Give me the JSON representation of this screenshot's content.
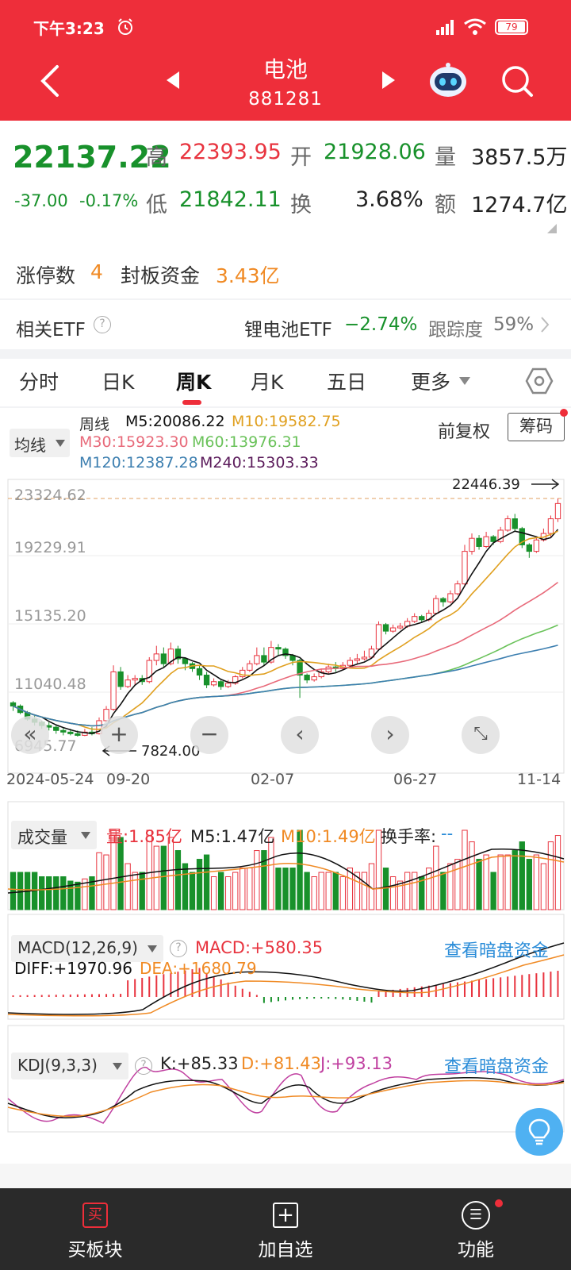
{
  "status": {
    "time": "下午3:23",
    "battery": "79"
  },
  "header": {
    "title": "电池",
    "code": "881281"
  },
  "quote": {
    "price": "22137.22",
    "change": "-37.00",
    "change_pct": "-0.17%",
    "high_label": "高",
    "high": "22393.95",
    "open_label": "开",
    "open": "21928.06",
    "vol_label": "量",
    "vol": "3857.5万",
    "low_label": "低",
    "low": "21842.11",
    "turn_label": "换",
    "turn": "3.68%",
    "amt_label": "额",
    "amt": "1274.7亿"
  },
  "limit": {
    "label": "涨停数",
    "count": "4",
    "fund_label": "封板资金",
    "fund": "3.43亿"
  },
  "etf": {
    "label": "相关ETF",
    "name": "锂电池ETF",
    "change": "−2.74%",
    "track_label": "跟踪度",
    "track": "59%"
  },
  "tabs": [
    "分时",
    "日K",
    "周K",
    "月K",
    "五日",
    "更多"
  ],
  "kline": {
    "indicator": "均线",
    "period": "周线",
    "m5": "M5:20086.22",
    "m10": "M10:19582.75",
    "m30": "M30:15923.30",
    "m60": "M60:13976.31",
    "m120": "M120:12387.28",
    "m240": "M240:15303.33",
    "restore": "前复权",
    "chip": "筹码",
    "y_ticks": [
      "23324.62",
      "19229.91",
      "15135.20",
      "11040.48",
      "6945.77"
    ],
    "high_mark": "22446.39",
    "low_mark": "7824.00",
    "x_ticks": [
      "2024-05-24",
      "09-20",
      "02-07",
      "06-27",
      "11-14"
    ]
  },
  "volume": {
    "selector": "成交量",
    "vol": "量:1.85亿",
    "m5": "M5:1.47亿",
    "m10": "M10:1.49亿",
    "turn_label": "换手率:",
    "turn": "--"
  },
  "macd": {
    "selector": "MACD(12,26,9)",
    "macd": "MACD:+580.35",
    "link": "查看暗盘资金",
    "diff": "DIFF:+1970.96",
    "dea": "DEA:+1680.79"
  },
  "kdj": {
    "selector": "KDJ(9,3,3)",
    "k": "K:+85.33",
    "d": "D:+81.43",
    "j": "J:+93.13",
    "link": "查看暗盘资金"
  },
  "bottom_nav": [
    {
      "label": "买板块",
      "icon": "买"
    },
    {
      "label": "加自选",
      "icon": "+"
    },
    {
      "label": "功能",
      "icon": "☰"
    }
  ],
  "colors": {
    "header": "#ee2e3a",
    "up": "#e8343f",
    "down": "#18912b",
    "m5": "#111111",
    "m10": "#e0a020",
    "m30": "#e86a7a",
    "m60": "#6ac25a",
    "m120": "#3d7fb0",
    "m240": "#5a1a5a"
  },
  "chart_data": {
    "type": "candlestick",
    "y_range": [
      6945.77,
      23324.62
    ],
    "candles": [
      [
        9900,
        9700,
        10000,
        9400
      ],
      [
        9700,
        9300,
        9800,
        9200
      ],
      [
        9300,
        8900,
        9400,
        8800
      ],
      [
        8900,
        8700,
        9100,
        8500
      ],
      [
        8700,
        8500,
        8800,
        8300
      ],
      [
        8500,
        8400,
        8700,
        8200
      ],
      [
        8400,
        8200,
        8500,
        8000
      ],
      [
        8200,
        8100,
        8400,
        7900
      ],
      [
        8100,
        8000,
        8300,
        7900
      ],
      [
        8000,
        7900,
        8200,
        7824
      ],
      [
        7900,
        8100,
        8300,
        7850
      ],
      [
        8100,
        8000,
        8400,
        7900
      ],
      [
        8000,
        8800,
        9000,
        7950
      ],
      [
        8800,
        9500,
        9700,
        8700
      ],
      [
        9500,
        11800,
        12200,
        9400
      ],
      [
        11800,
        10900,
        12100,
        10700
      ],
      [
        10900,
        11300,
        11600,
        10800
      ],
      [
        11300,
        11400,
        11600,
        11000
      ],
      [
        11400,
        11200,
        11600,
        11000
      ],
      [
        11200,
        12500,
        12700,
        11100
      ],
      [
        12500,
        12900,
        13400,
        12200
      ],
      [
        12900,
        12300,
        13300,
        12100
      ],
      [
        12300,
        13200,
        13600,
        12200
      ],
      [
        13200,
        12600,
        13400,
        12300
      ],
      [
        12600,
        12300,
        12700,
        11900
      ],
      [
        12300,
        12000,
        12400,
        11800
      ],
      [
        12000,
        11600,
        12200,
        11300
      ],
      [
        11600,
        11000,
        11800,
        10800
      ],
      [
        11000,
        11200,
        11400,
        10900
      ],
      [
        11200,
        10900,
        11300,
        10700
      ],
      [
        10900,
        11100,
        11300,
        10800
      ],
      [
        11100,
        11500,
        11600,
        11000
      ],
      [
        11500,
        11900,
        12100,
        11400
      ],
      [
        11900,
        12300,
        12500,
        11800
      ],
      [
        12300,
        12800,
        13300,
        12200
      ],
      [
        12800,
        12400,
        13300,
        12200
      ],
      [
        12400,
        13300,
        13700,
        12300
      ],
      [
        13300,
        13200,
        13500,
        12800
      ],
      [
        13200,
        12800,
        13300,
        12600
      ],
      [
        12800,
        12500,
        12900,
        12200
      ],
      [
        12500,
        11600,
        12600,
        10200
      ],
      [
        11600,
        11300,
        11700,
        11100
      ],
      [
        11300,
        11500,
        11700,
        11200
      ],
      [
        11500,
        11800,
        12000,
        11400
      ],
      [
        11800,
        12100,
        12300,
        11700
      ],
      [
        12100,
        12000,
        12400,
        11800
      ],
      [
        12000,
        12200,
        12400,
        11900
      ],
      [
        12200,
        12500,
        12700,
        12000
      ],
      [
        12500,
        12600,
        12900,
        12300
      ],
      [
        12600,
        12700,
        13100,
        12500
      ],
      [
        12700,
        13200,
        13400,
        12600
      ],
      [
        13200,
        14700,
        14900,
        13100
      ],
      [
        14700,
        14300,
        14800,
        14100
      ],
      [
        14300,
        14500,
        14700,
        14200
      ],
      [
        14500,
        14600,
        14800,
        14400
      ],
      [
        14600,
        14900,
        15100,
        14500
      ],
      [
        14900,
        15200,
        15400,
        14800
      ],
      [
        15200,
        15000,
        15300,
        14800
      ],
      [
        15000,
        15400,
        15600,
        14900
      ],
      [
        15400,
        16300,
        16500,
        15300
      ],
      [
        16300,
        16100,
        16400,
        15800
      ],
      [
        16100,
        16600,
        16800,
        16000
      ],
      [
        16600,
        17200,
        17400,
        16500
      ],
      [
        17200,
        19200,
        19600,
        17100
      ],
      [
        19200,
        20000,
        20300,
        19000
      ],
      [
        20000,
        19500,
        20200,
        19300
      ],
      [
        19500,
        20100,
        20400,
        19400
      ],
      [
        20100,
        19800,
        20200,
        19600
      ],
      [
        19800,
        20500,
        20700,
        19700
      ],
      [
        20500,
        21200,
        21400,
        20400
      ],
      [
        21200,
        20600,
        21500,
        20400
      ],
      [
        20600,
        19600,
        20700,
        19400
      ],
      [
        19600,
        19200,
        19700,
        18800
      ],
      [
        19200,
        19900,
        20100,
        19100
      ],
      [
        19900,
        20300,
        20600,
        19800
      ],
      [
        20300,
        21200,
        21400,
        20100
      ],
      [
        21200,
        22137,
        22446,
        21000
      ]
    ]
  }
}
